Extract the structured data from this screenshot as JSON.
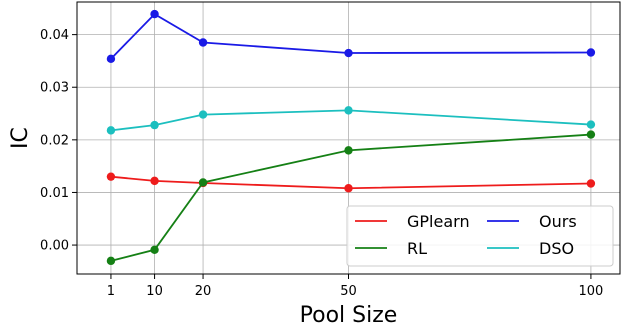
{
  "chart_data": {
    "type": "line",
    "xlabel": "Pool Size",
    "ylabel": "IC",
    "x": [
      1,
      10,
      20,
      50,
      100
    ],
    "x_ticks": [
      "1",
      "10",
      "20",
      "50",
      "100"
    ],
    "y_ticks": [
      "0.00",
      "0.01",
      "0.02",
      "0.03",
      "0.04"
    ],
    "xlim": [
      -6,
      106
    ],
    "ylim": [
      -0.0055,
      0.0462
    ],
    "grid": true,
    "legend_position": "lower-right",
    "series": [
      {
        "name": "GPlearn",
        "color": "#ee1c1c",
        "values": [
          0.013,
          0.0122,
          0.0118,
          0.0108,
          0.0117
        ]
      },
      {
        "name": "RL",
        "color": "#158015",
        "values": [
          -0.003,
          -0.0009,
          0.0119,
          0.018,
          0.021
        ]
      },
      {
        "name": "Ours",
        "color": "#1a1ae6",
        "values": [
          0.0354,
          0.0439,
          0.0385,
          0.0365,
          0.0366
        ]
      },
      {
        "name": "DSO",
        "color": "#1cbfbf",
        "values": [
          0.0218,
          0.0228,
          0.0248,
          0.0256,
          0.0229
        ]
      }
    ]
  }
}
